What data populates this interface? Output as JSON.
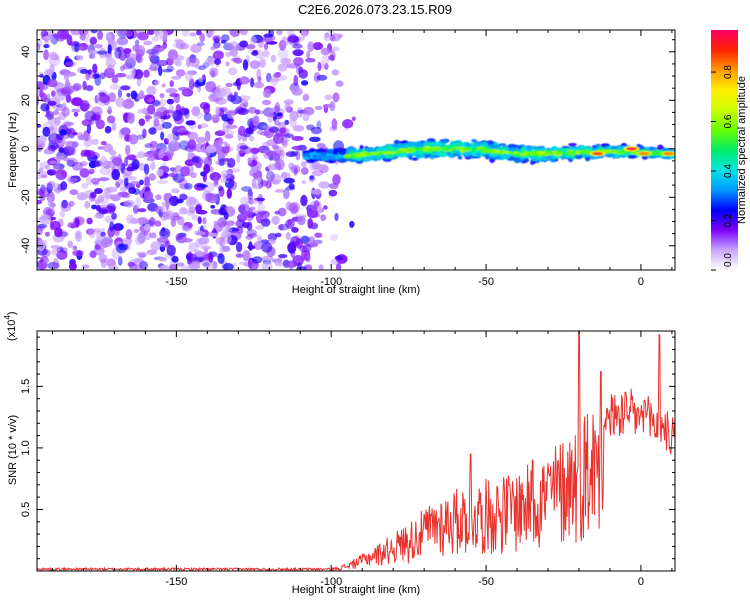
{
  "title": "C2E6.2026.073.23.15.R09",
  "colors": {
    "snr_line": "#e8322d",
    "frame": "#000000",
    "background": "#ffffff"
  },
  "chart_data": [
    {
      "type": "heatmap",
      "name": "spectrogram",
      "xlabel": "Height of straight line (km)",
      "ylabel": "Frequency (Hz)",
      "xlim": [
        -195,
        11
      ],
      "ylim": [
        -50,
        49
      ],
      "xticks": [
        -150,
        -100,
        -50,
        0
      ],
      "xtick_labels": [
        "-150",
        "-100",
        "-50",
        "0"
      ],
      "yticks": [
        -40,
        -20,
        0,
        20,
        40
      ],
      "ytick_labels": [
        "-40",
        "-20",
        "0",
        "20",
        "40"
      ],
      "noise_region_km": [
        -195,
        -100
      ],
      "noise_fade_edge_km": -97,
      "signal_start_km": -108,
      "signal_end_km": 11,
      "signal_center_hz": [
        [
          -108,
          -3
        ],
        [
          -90,
          -2.5
        ],
        [
          -70,
          0
        ],
        [
          -55,
          0
        ],
        [
          -40,
          -2
        ],
        [
          -20,
          -1.5
        ],
        [
          -5,
          -1
        ],
        [
          10,
          -2
        ]
      ],
      "signal_halfwidth_hz": [
        [
          -108,
          3
        ],
        [
          -90,
          4
        ],
        [
          -70,
          5
        ],
        [
          -50,
          4.5
        ],
        [
          -30,
          4
        ],
        [
          -10,
          3
        ],
        [
          10,
          2.5
        ]
      ],
      "hot_spots": [
        {
          "km": -14,
          "hz": -2,
          "amp": 0.9
        },
        {
          "km": -3,
          "hz": 0,
          "amp": 0.95
        },
        {
          "km": 1,
          "hz": -2,
          "amp": 0.85
        },
        {
          "km": 9,
          "hz": -2,
          "amp": 0.85
        }
      ]
    },
    {
      "type": "colorbar",
      "name": "amplitude-colorbar",
      "label": "Normalized spectral amplitude",
      "range": [
        0.0,
        0.97
      ],
      "ticks": [
        0.0,
        0.2,
        0.4,
        0.6,
        0.8
      ],
      "tick_labels": [
        "0.0",
        "0.2",
        "0.4",
        "0.6",
        "0.8"
      ],
      "colormap": [
        "#ffffff",
        "#c9a6ff",
        "#7a00ff",
        "#0000ff",
        "#0099ff",
        "#00e5e5",
        "#00ee66",
        "#66ff00",
        "#ccff00",
        "#ffee00",
        "#ff9900",
        "#ff2200",
        "#ff0066"
      ]
    },
    {
      "type": "line",
      "name": "snr",
      "xlabel": "Height of straight line (km)",
      "ylabel": "SNR (10 * v/v)",
      "exponent_label": "(x10",
      "exponent_power": "4",
      "xlim": [
        -195,
        11
      ],
      "ylim": [
        0,
        1.95
      ],
      "xticks": [
        -150,
        -100,
        -50,
        0
      ],
      "xtick_labels": [
        "-150",
        "-100",
        "-50",
        "0"
      ],
      "yticks": [
        0.5,
        1.0,
        1.5
      ],
      "ytick_labels": [
        "0.5",
        "1.0",
        "1.5"
      ],
      "envelope": [
        {
          "x": -195,
          "y": 0.01
        },
        {
          "x": -100,
          "y": 0.02
        },
        {
          "x": -95,
          "y": 0.06
        },
        {
          "x": -85,
          "y": 0.22
        },
        {
          "x": -75,
          "y": 0.4
        },
        {
          "x": -65,
          "y": 0.62
        },
        {
          "x": -55,
          "y": 0.72
        },
        {
          "x": -45,
          "y": 0.78
        },
        {
          "x": -35,
          "y": 0.88
        },
        {
          "x": -25,
          "y": 1.1
        },
        {
          "x": -18,
          "y": 1.35
        },
        {
          "x": -10,
          "y": 1.45
        },
        {
          "x": -5,
          "y": 1.5
        },
        {
          "x": 0,
          "y": 1.45
        },
        {
          "x": 5,
          "y": 1.4
        },
        {
          "x": 11,
          "y": 1.25
        }
      ],
      "peaks": [
        {
          "x": -55,
          "y": 0.95
        },
        {
          "x": -35,
          "y": 0.9
        },
        {
          "x": -20,
          "y": 1.97
        },
        {
          "x": -13,
          "y": 1.62
        },
        {
          "x": 6,
          "y": 1.92
        }
      ]
    }
  ]
}
